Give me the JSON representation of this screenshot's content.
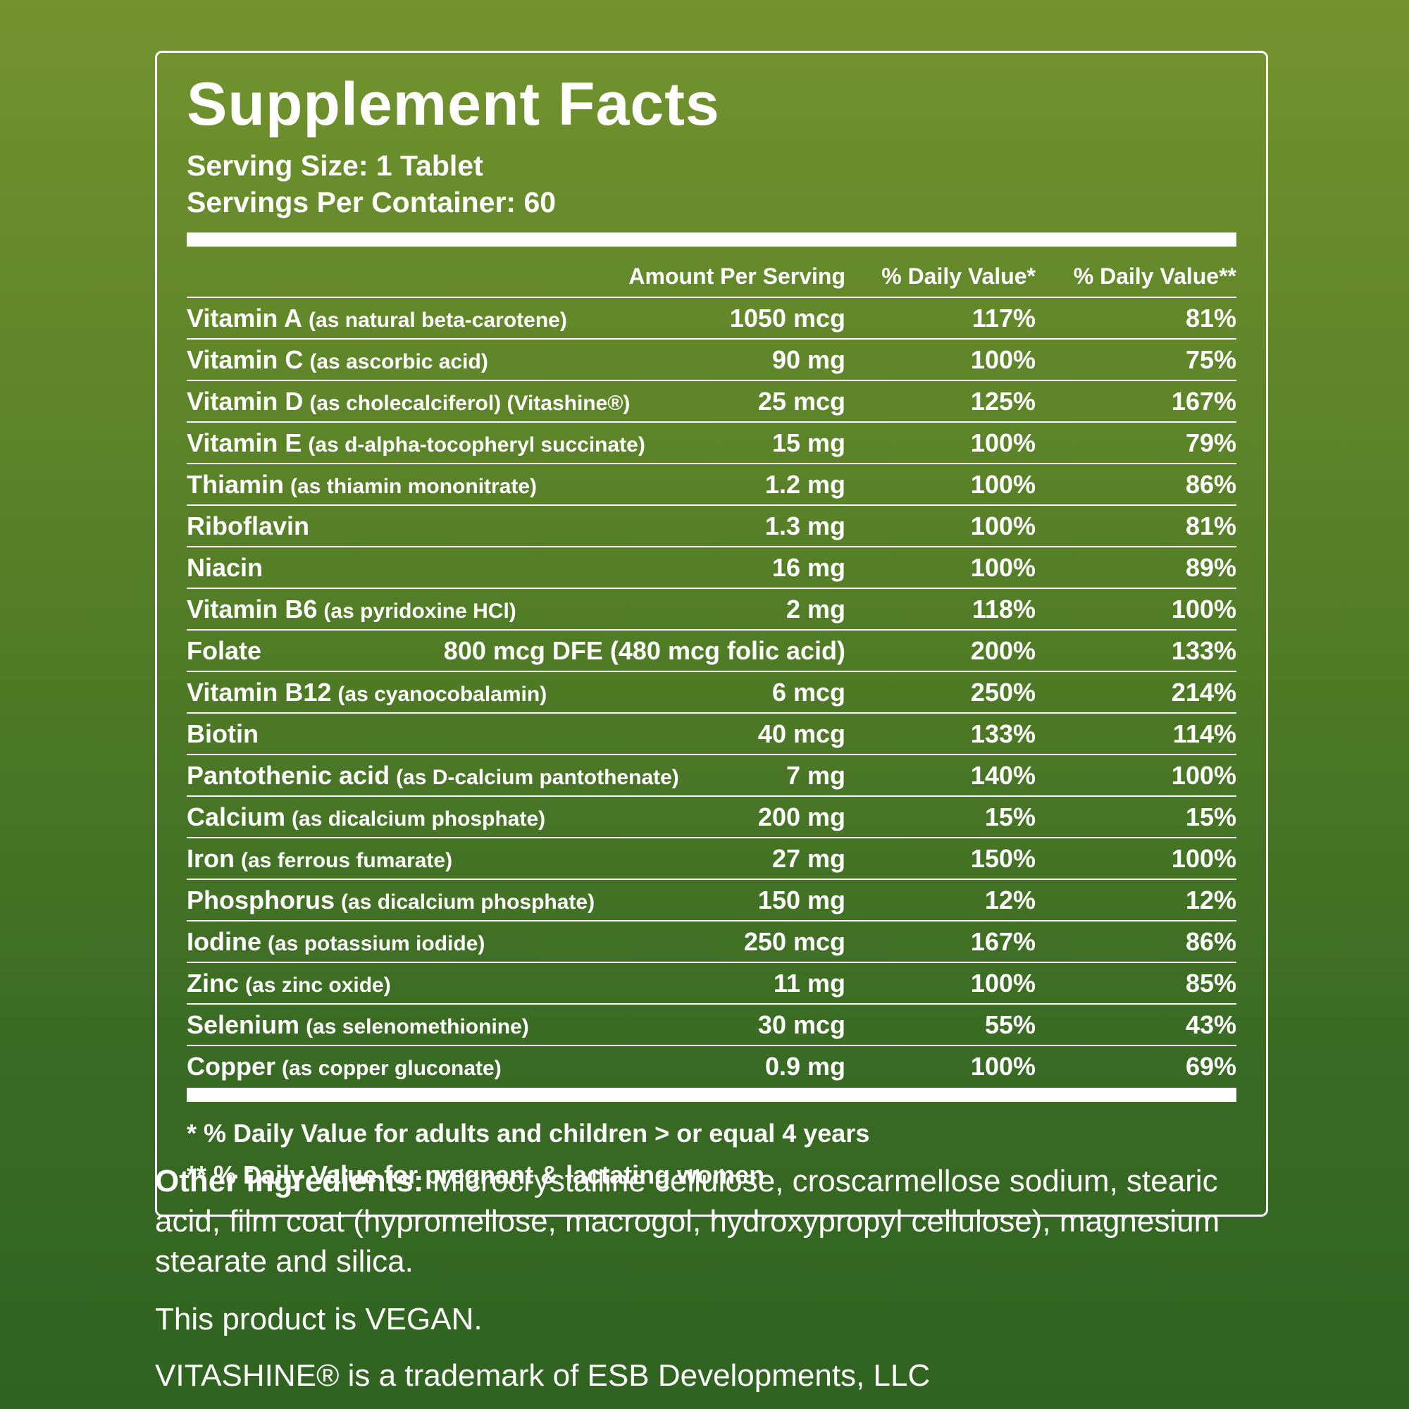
{
  "panel": {
    "title": "Supplement Facts",
    "serving_size": "Serving Size: 1 Tablet",
    "servings_per_container": "Servings Per Container: 60",
    "columns": [
      "Amount Per Serving",
      "% Daily Value*",
      "% Daily Value**"
    ],
    "rows": [
      {
        "name": "Vitamin A",
        "detail": "(as natural beta-carotene)",
        "amount": "1050 mcg",
        "dv1": "117%",
        "dv2": "81%"
      },
      {
        "name": "Vitamin C",
        "detail": "(as ascorbic acid)",
        "amount": "90 mg",
        "dv1": "100%",
        "dv2": "75%"
      },
      {
        "name": "Vitamin D",
        "detail": "(as cholecalciferol) (Vitashine®)",
        "amount": "25 mcg",
        "dv1": "125%",
        "dv2": "167%"
      },
      {
        "name": "Vitamin E",
        "detail": "(as d-alpha-tocopheryl succinate)",
        "amount": "15 mg",
        "dv1": "100%",
        "dv2": "79%"
      },
      {
        "name": "Thiamin",
        "detail": "(as thiamin mononitrate)",
        "amount": "1.2 mg",
        "dv1": "100%",
        "dv2": "86%"
      },
      {
        "name": "Riboflavin",
        "detail": "",
        "amount": "1.3 mg",
        "dv1": "100%",
        "dv2": "81%"
      },
      {
        "name": "Niacin",
        "detail": "",
        "amount": "16 mg",
        "dv1": "100%",
        "dv2": "89%"
      },
      {
        "name": "Vitamin B6",
        "detail": "(as pyridoxine HCl)",
        "amount": "2 mg",
        "dv1": "118%",
        "dv2": "100%"
      },
      {
        "name": "Folate",
        "detail": "",
        "amount": "800 mcg DFE (480 mcg folic acid)",
        "dv1": "200%",
        "dv2": "133%"
      },
      {
        "name": "Vitamin B12",
        "detail": "(as cyanocobalamin)",
        "amount": "6 mcg",
        "dv1": "250%",
        "dv2": "214%"
      },
      {
        "name": "Biotin",
        "detail": "",
        "amount": "40 mcg",
        "dv1": "133%",
        "dv2": "114%"
      },
      {
        "name": "Pantothenic acid",
        "detail": "(as D-calcium pantothenate)",
        "amount": "7 mg",
        "dv1": "140%",
        "dv2": "100%"
      },
      {
        "name": "Calcium",
        "detail": "(as dicalcium phosphate)",
        "amount": "200 mg",
        "dv1": "15%",
        "dv2": "15%"
      },
      {
        "name": "Iron",
        "detail": "(as ferrous fumarate)",
        "amount": "27 mg",
        "dv1": "150%",
        "dv2": "100%"
      },
      {
        "name": "Phosphorus",
        "detail": "(as dicalcium phosphate)",
        "amount": "150 mg",
        "dv1": "12%",
        "dv2": "12%"
      },
      {
        "name": "Iodine",
        "detail": "(as potassium iodide)",
        "amount": "250 mcg",
        "dv1": "167%",
        "dv2": "86%"
      },
      {
        "name": "Zinc",
        "detail": "(as zinc oxide)",
        "amount": "11 mg",
        "dv1": "100%",
        "dv2": "85%"
      },
      {
        "name": "Selenium",
        "detail": "(as selenomethionine)",
        "amount": "30 mcg",
        "dv1": "55%",
        "dv2": "43%"
      },
      {
        "name": "Copper",
        "detail": "(as copper gluconate)",
        "amount": "0.9 mg",
        "dv1": "100%",
        "dv2": "69%"
      }
    ],
    "footnotes": [
      "* % Daily Value for adults and children > or equal 4 years",
      "** % Daily Value for pregnant & lactating women"
    ]
  },
  "other_ingredients": {
    "label": "Other ingredients:",
    "text": "Microcrystalline cellulose, croscarmellose sodium, stearic acid, film coat (hypromellose, macrogol, hydroxypropyl cellulose), magnesium stearate and silica."
  },
  "vegan_note": "This product is VEGAN.",
  "trademark_note": "VITASHINE® is a trademark of ESB Developments, LLC",
  "colors": {
    "background_top": "#73932e",
    "background_bottom": "#2f6320",
    "text": "#ffffff",
    "rule": "#ffffff"
  }
}
